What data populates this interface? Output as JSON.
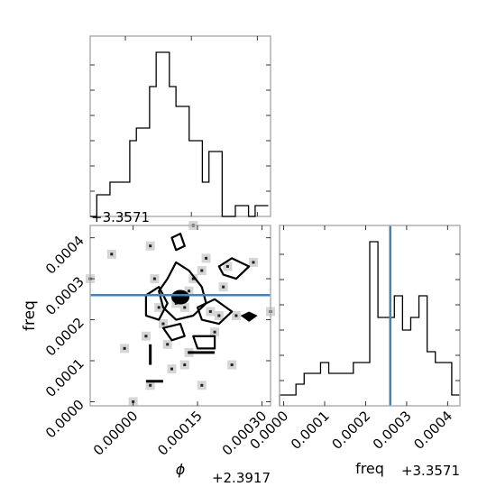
{
  "chart_data": [
    {
      "type": "histogram",
      "panel": "phi-marginal",
      "xlim": [
        -8e-05,
        0.00033
      ],
      "ylim": [
        0,
        1.0
      ],
      "bin_edges": [
        -8e-05,
        -6.5e-05,
        -5e-05,
        -3.5e-05,
        -2e-05,
        -5e-06,
        1e-05,
        2.5e-05,
        4e-05,
        5.5e-05,
        7e-05,
        8.5e-05,
        0.0001,
        0.000115,
        0.00013,
        0.000145,
        0.00016,
        0.000175,
        0.00019,
        0.000205,
        0.00022,
        0.000235,
        0.00025,
        0.000265,
        0.00028,
        0.000295,
        0.00031,
        0.000325
      ],
      "counts": [
        0.0,
        0.12,
        0.12,
        0.19,
        0.19,
        0.19,
        0.42,
        0.49,
        0.49,
        0.72,
        0.91,
        0.91,
        0.72,
        0.61,
        0.61,
        0.42,
        0.42,
        0.19,
        0.36,
        0.36,
        0.0,
        0.0,
        0.06,
        0.06,
        0.0,
        0.06,
        0.06
      ],
      "ticks_y": [
        "",
        "",
        "",
        "",
        "",
        "",
        ""
      ]
    },
    {
      "type": "contour",
      "panel": "phi-vs-freq",
      "xlabel": "ϕ",
      "ylabel": "freq",
      "x_offset_label": "+2.3917",
      "y_offset_label": "+3.3571",
      "xlim": [
        -0.0001,
        0.00032
      ],
      "ylim": [
        -1e-05,
        0.00043
      ],
      "xticks": [
        "0.00000",
        "0.00015",
        "0.00030"
      ],
      "xtick_values": [
        0.0,
        0.00015,
        0.0003
      ],
      "yticks": [
        "0.0000",
        "0.0001",
        "0.0002",
        "0.0003",
        "0.0004"
      ],
      "ytick_values": [
        0.0,
        0.0001,
        0.0002,
        0.0003,
        0.0004
      ],
      "truth_freq": 0.00026,
      "samples": [
        [
          0.00011,
          0.00026
        ],
        [
          0.00013,
          0.00027
        ],
        [
          0.0001,
          0.00024
        ],
        [
          0.00012,
          0.00023
        ],
        [
          0.00018,
          0.00022
        ],
        [
          0.0002,
          0.00021
        ],
        [
          0.00024,
          0.00021
        ],
        [
          6e-05,
          0.00023
        ],
        [
          5e-05,
          0.0003
        ],
        [
          0.00016,
          0.00032
        ],
        [
          0.00022,
          0.00033
        ],
        [
          0.00014,
          0.0003
        ],
        [
          3e-05,
          0.00016
        ],
        [
          0.00013,
          0.00012
        ],
        [
          0.00012,
          9e-05
        ],
        [
          9e-05,
          8e-05
        ],
        [
          4e-05,
          4e-05
        ],
        [
          0.0,
          0.0
        ],
        [
          0.00023,
          9e-05
        ],
        [
          0.00028,
          0.00034
        ],
        [
          0.00014,
          0.00043
        ],
        [
          -0.0001,
          0.0003
        ],
        [
          -5e-05,
          0.00036
        ],
        [
          0.00019,
          0.00017
        ],
        [
          0.00032,
          0.00022
        ],
        [
          4e-05,
          0.00038
        ],
        [
          0.00017,
          0.00035
        ],
        [
          0.00021,
          0.00028
        ],
        [
          7e-05,
          0.00019
        ],
        [
          8e-05,
          0.00014
        ],
        [
          -2e-05,
          0.00013
        ],
        [
          0.00016,
          4e-05
        ]
      ]
    },
    {
      "type": "histogram",
      "panel": "freq-marginal",
      "xlabel": "freq",
      "x_offset_label": "+3.3571",
      "xlim": [
        -1e-05,
        0.00043
      ],
      "ylim": [
        0,
        1.0
      ],
      "xticks": [
        "0.0000",
        "0.0001",
        "0.0002",
        "0.0003",
        "0.0004"
      ],
      "xtick_values": [
        0.0,
        0.0001,
        0.0002,
        0.0003,
        0.0004
      ],
      "truth_freq": 0.00026,
      "bin_edges": [
        -1e-05,
        1e-05,
        3e-05,
        5e-05,
        7e-05,
        9e-05,
        0.00011,
        0.00013,
        0.00015,
        0.00017,
        0.00019,
        0.00021,
        0.00023,
        0.00025,
        0.00027,
        0.00029,
        0.00031,
        0.00033,
        0.00035,
        0.00037,
        0.00039,
        0.00041,
        0.00043
      ],
      "counts": [
        0.06,
        0.06,
        0.12,
        0.18,
        0.18,
        0.24,
        0.18,
        0.18,
        0.18,
        0.24,
        0.24,
        0.91,
        0.49,
        0.49,
        0.61,
        0.42,
        0.49,
        0.61,
        0.3,
        0.24,
        0.24,
        0.06
      ]
    }
  ]
}
